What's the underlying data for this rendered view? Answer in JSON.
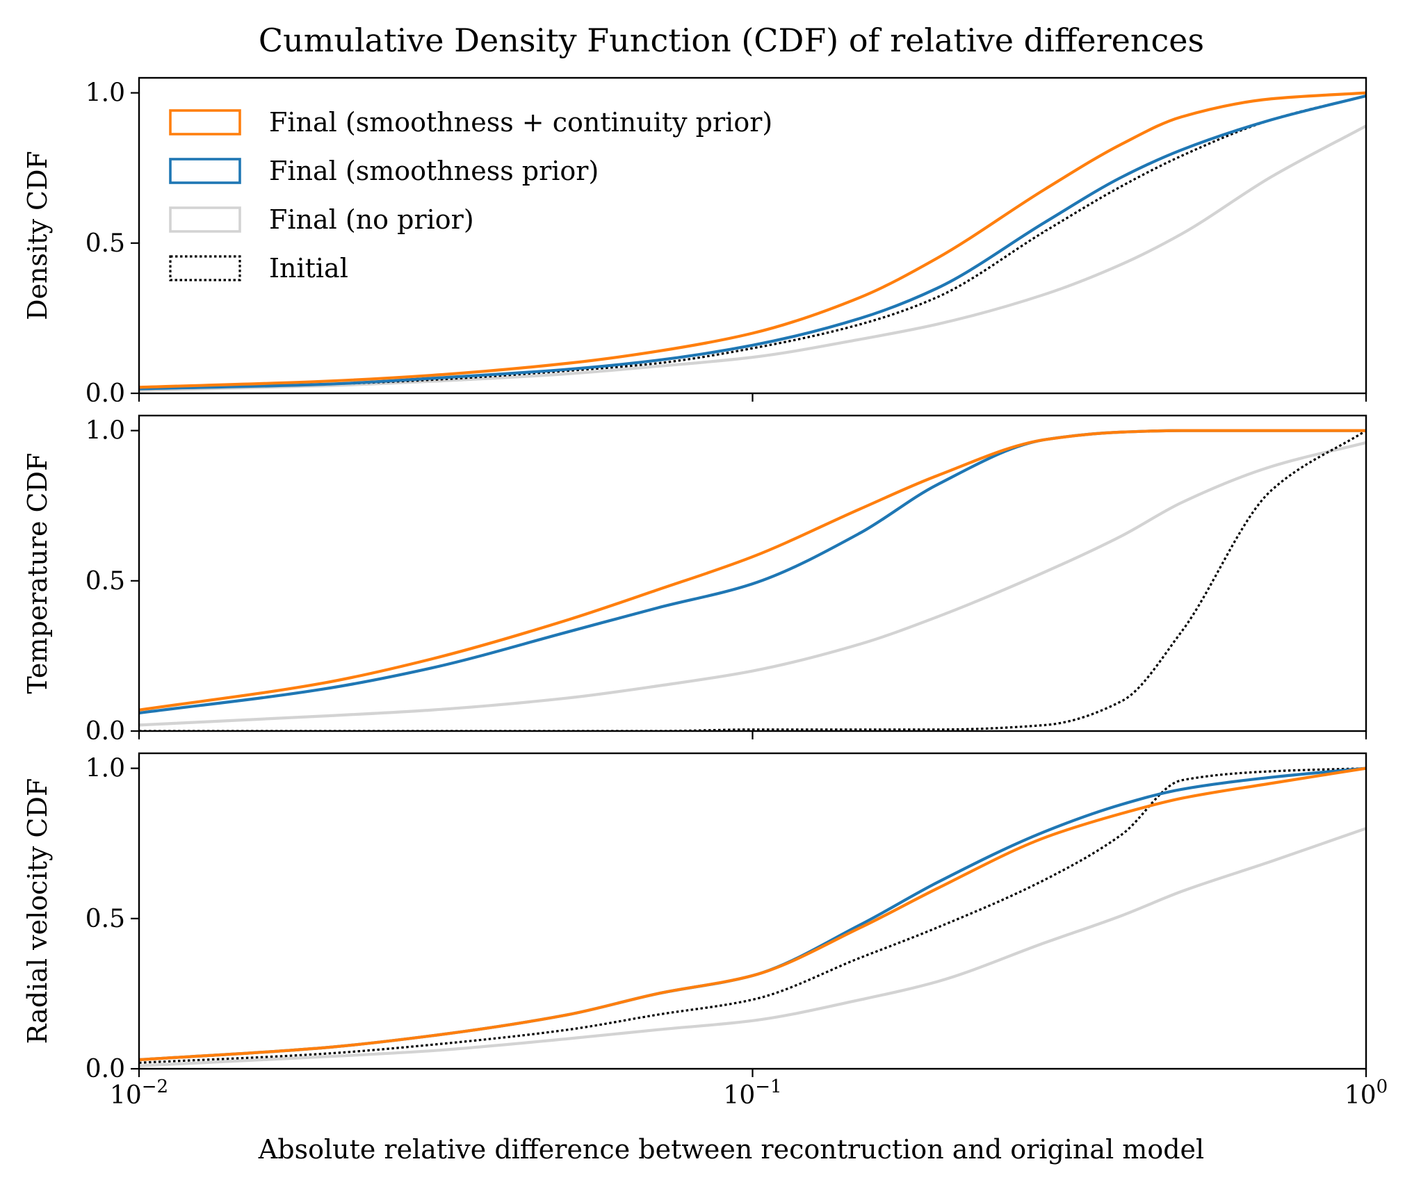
{
  "chart_data": {
    "type": "line",
    "title": "Cumulative Density Function (CDF) of relative differences",
    "xlabel": "Absolute relative difference between recontruction and original model",
    "xscale": "log",
    "xlim": [
      0.01,
      1.0
    ],
    "x_tick_labels": [
      {
        "base": "10",
        "exp": "−2"
      },
      {
        "base": "10",
        "exp": "−1"
      },
      {
        "base": "10",
        "exp": "0"
      }
    ],
    "y_tick_labels": [
      "0.0",
      "0.5",
      "1.0"
    ],
    "ylim": [
      0,
      1.05
    ],
    "grid": false,
    "legend_placement": "upper-left of top panel",
    "x": [
      0.01,
      0.02,
      0.03,
      0.05,
      0.07,
      0.1,
      0.15,
      0.2,
      0.3,
      0.4,
      0.5,
      0.7,
      1.0
    ],
    "series_styles": [
      {
        "name": "Final (smoothness + continuity prior)",
        "color": "#ff7f0e",
        "dash": "solid"
      },
      {
        "name": "Final (smoothness prior)",
        "color": "#1f77b4",
        "dash": "solid"
      },
      {
        "name": "Final (no prior)",
        "color": "#d3d3d3",
        "dash": "solid"
      },
      {
        "name": "Initial",
        "color": "#000000",
        "dash": "dotted"
      }
    ],
    "panels": [
      {
        "ylabel": "Density CDF",
        "series": [
          {
            "name": "Final (smoothness + continuity prior)",
            "values": [
              0.02,
              0.04,
              0.06,
              0.1,
              0.14,
              0.2,
              0.32,
              0.45,
              0.68,
              0.83,
              0.92,
              0.98,
              1.0
            ]
          },
          {
            "name": "Final (smoothness prior)",
            "values": [
              0.015,
              0.03,
              0.05,
              0.08,
              0.11,
              0.16,
              0.25,
              0.35,
              0.57,
              0.72,
              0.81,
              0.91,
              0.99
            ]
          },
          {
            "name": "Final (no prior)",
            "values": [
              0.01,
              0.025,
              0.04,
              0.065,
              0.09,
              0.12,
              0.18,
              0.23,
              0.33,
              0.43,
              0.53,
              0.72,
              0.89
            ]
          },
          {
            "name": "Initial",
            "values": [
              0.015,
              0.03,
              0.045,
              0.075,
              0.1,
              0.15,
              0.23,
              0.32,
              0.54,
              0.69,
              0.79,
              0.91,
              0.99
            ]
          }
        ]
      },
      {
        "ylabel": "Temperature CDF",
        "series": [
          {
            "name": "Final (smoothness + continuity prior)",
            "values": [
              0.07,
              0.16,
              0.24,
              0.37,
              0.47,
              0.58,
              0.74,
              0.85,
              0.97,
              0.995,
              1.0,
              1.0,
              1.0
            ]
          },
          {
            "name": "Final (smoothness prior)",
            "values": [
              0.06,
              0.14,
              0.21,
              0.33,
              0.41,
              0.49,
              0.66,
              0.82,
              0.97,
              0.995,
              1.0,
              1.0,
              1.0
            ]
          },
          {
            "name": "Final (no prior)",
            "values": [
              0.02,
              0.05,
              0.07,
              0.11,
              0.15,
              0.2,
              0.29,
              0.38,
              0.53,
              0.65,
              0.76,
              0.88,
              0.96
            ]
          },
          {
            "name": "Initial",
            "values": [
              0.0,
              0.0,
              0.0,
              0.0,
              0.0,
              0.005,
              0.005,
              0.005,
              0.02,
              0.1,
              0.33,
              0.8,
              1.0
            ]
          }
        ]
      },
      {
        "ylabel": "Radial velocity CDF",
        "series": [
          {
            "name": "Final (smoothness + continuity prior)",
            "values": [
              0.03,
              0.07,
              0.11,
              0.18,
              0.25,
              0.31,
              0.47,
              0.6,
              0.77,
              0.85,
              0.9,
              0.95,
              1.0
            ]
          },
          {
            "name": "Final (smoothness prior)",
            "values": [
              0.03,
              0.07,
              0.11,
              0.18,
              0.25,
              0.31,
              0.48,
              0.62,
              0.79,
              0.88,
              0.93,
              0.97,
              1.0
            ]
          },
          {
            "name": "Final (no prior)",
            "values": [
              0.01,
              0.04,
              0.06,
              0.1,
              0.13,
              0.16,
              0.23,
              0.29,
              0.42,
              0.51,
              0.59,
              0.69,
              0.8
            ]
          },
          {
            "name": "Initial",
            "values": [
              0.02,
              0.05,
              0.08,
              0.13,
              0.18,
              0.23,
              0.37,
              0.47,
              0.63,
              0.78,
              0.96,
              0.99,
              1.0
            ]
          }
        ]
      }
    ]
  }
}
